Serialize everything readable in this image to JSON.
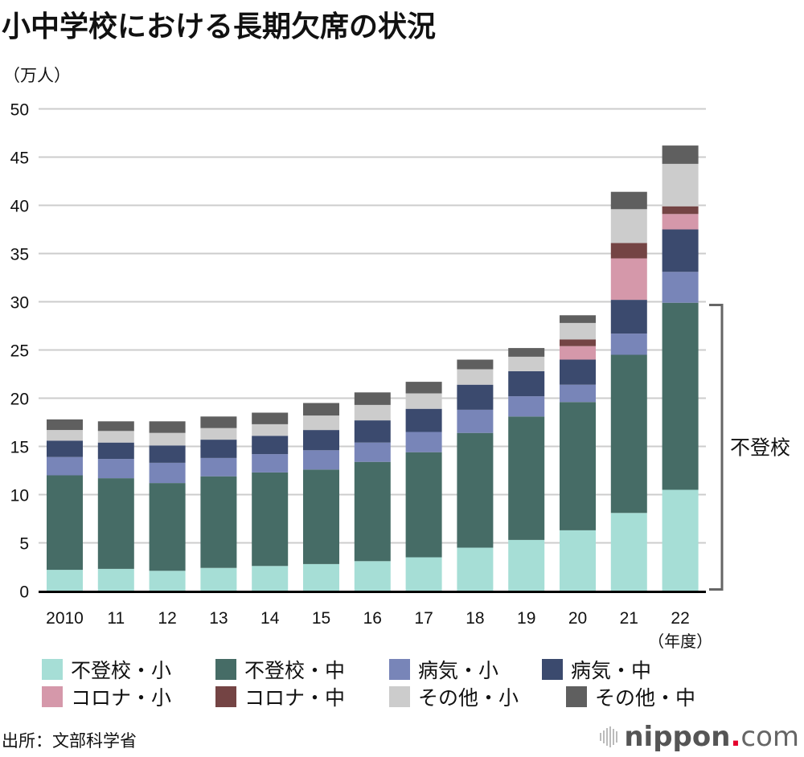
{
  "header": {
    "title": "小中学校における長期欠席の状況",
    "unit_label": "（万人）"
  },
  "chart_data": {
    "type": "bar",
    "stacked": true,
    "title": "小中学校における長期欠席の状況",
    "xlabel": "（年度）",
    "ylabel": "（万人）",
    "ylim": [
      0,
      50
    ],
    "yticks": [
      0,
      5,
      10,
      15,
      20,
      25,
      30,
      35,
      40,
      45,
      50
    ],
    "grid": true,
    "legend_position": "bottom",
    "categories": [
      "2010",
      "11",
      "12",
      "13",
      "14",
      "15",
      "16",
      "17",
      "18",
      "19",
      "20",
      "21",
      "22"
    ],
    "series": [
      {
        "name": "不登校・小",
        "color": "#a6ded6",
        "values": [
          2.2,
          2.3,
          2.1,
          2.4,
          2.6,
          2.8,
          3.1,
          3.5,
          4.5,
          5.3,
          6.3,
          8.1,
          10.5
        ]
      },
      {
        "name": "不登校・中",
        "color": "#466c66",
        "values": [
          9.8,
          9.4,
          9.1,
          9.5,
          9.7,
          9.8,
          10.3,
          10.9,
          11.9,
          12.8,
          13.3,
          16.4,
          19.4
        ]
      },
      {
        "name": "病気・小",
        "color": "#7885b8",
        "values": [
          1.9,
          2.0,
          2.1,
          1.9,
          1.9,
          2.0,
          2.0,
          2.1,
          2.4,
          2.1,
          1.8,
          2.2,
          3.2
        ]
      },
      {
        "name": "病気・中",
        "color": "#3b4a6e",
        "values": [
          1.7,
          1.7,
          1.8,
          1.9,
          1.9,
          2.1,
          2.3,
          2.4,
          2.6,
          2.6,
          2.6,
          3.5,
          4.4
        ]
      },
      {
        "name": "コロナ・小",
        "color": "#d598aa",
        "values": [
          0,
          0,
          0,
          0,
          0,
          0,
          0,
          0,
          0,
          0,
          1.4,
          4.3,
          1.6
        ]
      },
      {
        "name": "コロナ・中",
        "color": "#744444",
        "values": [
          0,
          0,
          0,
          0,
          0,
          0,
          0,
          0,
          0,
          0,
          0.7,
          1.6,
          0.8
        ]
      },
      {
        "name": "その他・小",
        "color": "#cccccc",
        "values": [
          1.1,
          1.2,
          1.3,
          1.2,
          1.2,
          1.5,
          1.6,
          1.6,
          1.6,
          1.5,
          1.7,
          3.5,
          4.4
        ]
      },
      {
        "name": "その他・中",
        "color": "#5f5f5f",
        "values": [
          1.1,
          1.0,
          1.2,
          1.2,
          1.2,
          1.3,
          1.3,
          1.2,
          1.0,
          0.9,
          0.8,
          1.8,
          1.9
        ]
      }
    ],
    "annotations": [
      {
        "text": "不登校",
        "type": "bracket",
        "range": [
          0,
          30
        ]
      }
    ]
  },
  "legend": [
    {
      "label": "不登校・小",
      "color": "#a6ded6"
    },
    {
      "label": "不登校・中",
      "color": "#466c66"
    },
    {
      "label": "病気・小",
      "color": "#7885b8"
    },
    {
      "label": "病気・中",
      "color": "#3b4a6e"
    },
    {
      "label": "コロナ・小",
      "color": "#d598aa"
    },
    {
      "label": "コロナ・中",
      "color": "#744444"
    },
    {
      "label": "その他・小",
      "color": "#cccccc"
    },
    {
      "label": "その他・中",
      "color": "#5f5f5f"
    }
  ],
  "footer": {
    "source": "出所：文部科学省",
    "logo_brand": "nippon",
    "logo_dot": ".",
    "logo_tld": "com"
  }
}
